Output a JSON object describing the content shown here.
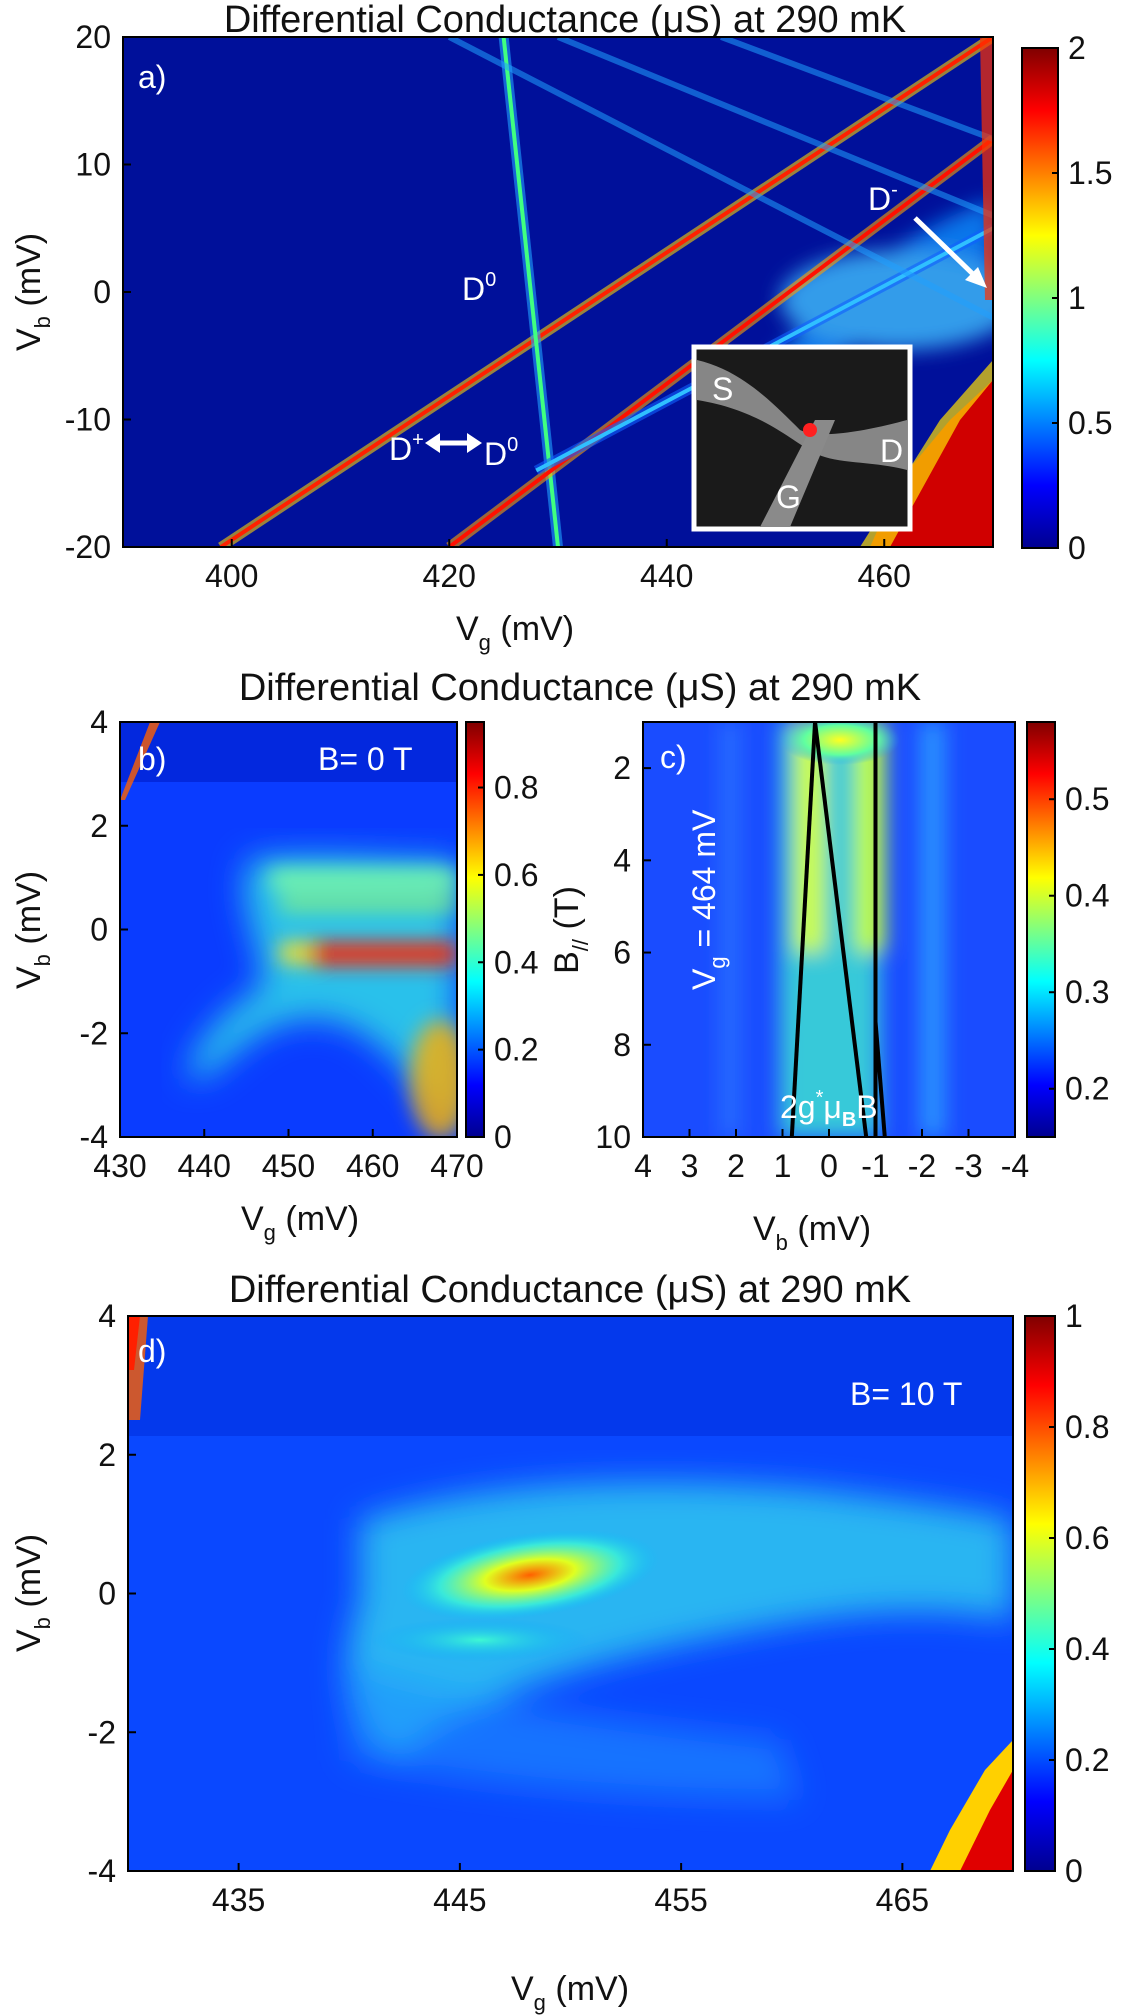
{
  "figure_title": "Differential Conductance (μS) at 290 mK",
  "colors": {
    "colormap": [
      "#00008f",
      "#0000ff",
      "#0080ff",
      "#00ffff",
      "#80ff80",
      "#ffff00",
      "#ff8000",
      "#ff0000",
      "#800000"
    ],
    "background_a": "#00109a",
    "annotation": "#ffffff",
    "guide_lines": "#000000"
  },
  "chart_data": [
    {
      "panel": "a)",
      "type": "heatmap",
      "title": "Differential Conductance (μS) at 290 mK",
      "xlabel": "V_g (mV)",
      "ylabel": "V_b (mV)",
      "xlim": [
        390,
        470
      ],
      "ylim": [
        -20,
        20
      ],
      "xticks": [
        400,
        420,
        440,
        460
      ],
      "yticks": [
        20,
        10,
        0,
        -10,
        -20
      ],
      "clim": [
        0,
        2
      ],
      "cticks": [
        "2",
        "1.5",
        "1",
        "0.5",
        "0"
      ],
      "features": [
        {
          "name": "D+ to D0 line",
          "from": [
            399,
            -20
          ],
          "to": [
            470,
            20
          ],
          "peak": 2.0
        },
        {
          "name": "D0 line",
          "from": [
            425,
            20
          ],
          "to": [
            430,
            -20
          ],
          "peak": 1.4
        },
        {
          "name": "excited line",
          "from": [
            420,
            -20
          ],
          "to": [
            470,
            12
          ],
          "peak": 1.0
        },
        {
          "name": "excited line",
          "from": [
            428,
            -14
          ],
          "to": [
            470,
            5
          ],
          "peak": 0.7
        }
      ],
      "annotations": [
        "D⁰",
        "D⁺",
        "D⁰",
        "D⁻"
      ],
      "inset_labels": {
        "source": "S",
        "drain": "D",
        "gate": "G"
      }
    },
    {
      "panel": "b)",
      "type": "heatmap",
      "title": "Differential Conductance (μS) at 290 mK",
      "xlabel": "V_g (mV)",
      "ylabel": "V_b (mV)",
      "xlim": [
        430,
        470
      ],
      "ylim": [
        -4,
        4
      ],
      "xticks": [
        430,
        440,
        450,
        460,
        470
      ],
      "yticks": [
        4,
        2,
        0,
        -2,
        -4
      ],
      "clim": [
        0,
        0.95
      ],
      "cticks": [
        "0.8",
        "0.6",
        "0.4",
        "0.2",
        "0"
      ],
      "annotation": "B= 0 T",
      "features": [
        {
          "name": "zero-bias peak",
          "vg_range": [
            448,
            470
          ],
          "vb": -0.4,
          "peak": 0.9
        },
        {
          "name": "excited level",
          "vg_range": [
            444,
            468
          ],
          "vb": 0.8,
          "peak": 0.5
        },
        {
          "name": "excited level",
          "vg_range": [
            443,
            468
          ],
          "vb": 1.8,
          "peak": 0.35
        }
      ]
    },
    {
      "panel": "c)",
      "type": "heatmap",
      "xlabel": "V_b (mV)",
      "ylabel": "B_// (T)",
      "xlim": [
        4,
        -4
      ],
      "ylim": [
        1,
        10
      ],
      "xticks": [
        "4",
        "3",
        "2",
        "1",
        "0",
        "-1",
        "-2",
        "-3",
        "-4"
      ],
      "yticks": [
        2,
        4,
        6,
        8,
        10
      ],
      "clim": [
        0.15,
        0.58
      ],
      "cticks": [
        "0.5",
        "0.4",
        "0.3",
        "0.2"
      ],
      "annotation_vg": "V_g = 464 mV",
      "annotation_zeeman": "2g*μ_B B",
      "guide_lines": [
        {
          "from": [
            0.3,
            1
          ],
          "to": [
            0.8,
            10
          ]
        },
        {
          "from": [
            0.3,
            1
          ],
          "to": [
            -0.8,
            10
          ]
        },
        {
          "from": [
            -1.0,
            1
          ],
          "to": [
            -1.0,
            10
          ]
        },
        {
          "from": [
            -1.0,
            7.5
          ],
          "to": [
            -1.2,
            10
          ]
        }
      ]
    },
    {
      "panel": "d)",
      "type": "heatmap",
      "title": "Differential Conductance (μS) at 290 mK",
      "xlabel": "V_g (mV)",
      "ylabel": "V_b (mV)",
      "xlim": [
        430,
        470
      ],
      "ylim": [
        -4,
        4
      ],
      "xticks": [
        435,
        445,
        455,
        465
      ],
      "yticks": [
        "4",
        "2",
        "0",
        "-2",
        "-4"
      ],
      "clim": [
        0,
        1
      ],
      "cticks": [
        "1",
        "0.8",
        "0.6",
        "0.4",
        "0.2",
        "0"
      ],
      "annotation": "B= 10 T",
      "features": [
        {
          "name": "split level",
          "vg_range": [
            444,
            456
          ],
          "vb": 0.3,
          "peak": 0.75
        },
        {
          "name": "split level",
          "vg_range": [
            444,
            452
          ],
          "vb": -0.8,
          "peak": 0.4
        }
      ]
    }
  ]
}
